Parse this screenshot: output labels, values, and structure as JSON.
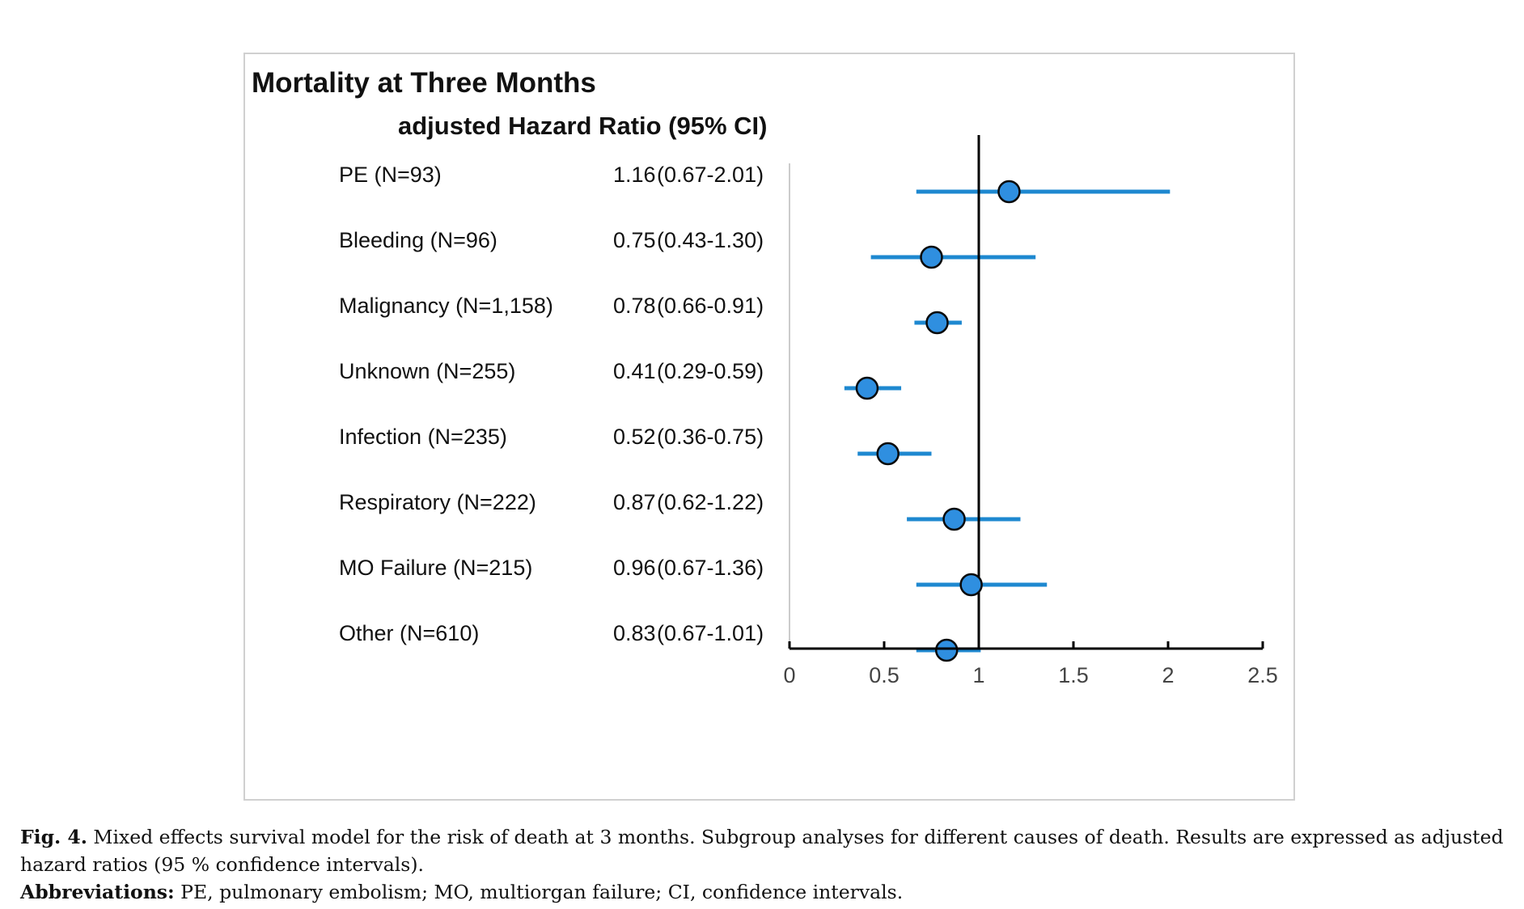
{
  "chart_data": {
    "type": "forest",
    "title": "Mortality at Three Months",
    "subtitle": "adjusted Hazard Ratio (95% CI)",
    "reference_line": 1,
    "xlim": [
      0,
      2.5
    ],
    "xticks": [
      "0",
      "0.5",
      "1",
      "1.5",
      "2",
      "2.5"
    ],
    "xtick_values": [
      0,
      0.5,
      1,
      1.5,
      2,
      2.5
    ],
    "rows": [
      {
        "label": "PE (N=93)",
        "hr_text": "1.16",
        "ci_text": "(0.67-2.01)",
        "hr": 1.16,
        "low": 0.67,
        "high": 2.01
      },
      {
        "label": "Bleeding (N=96)",
        "hr_text": "0.75",
        "ci_text": "(0.43-1.30)",
        "hr": 0.75,
        "low": 0.43,
        "high": 1.3
      },
      {
        "label": "Malignancy (N=1,158)",
        "hr_text": "0.78",
        "ci_text": "(0.66-0.91)",
        "hr": 0.78,
        "low": 0.66,
        "high": 0.91
      },
      {
        "label": "Unknown (N=255)",
        "hr_text": "0.41",
        "ci_text": "(0.29-0.59)",
        "hr": 0.41,
        "low": 0.29,
        "high": 0.59
      },
      {
        "label": "Infection  (N=235)",
        "hr_text": "0.52",
        "ci_text": "(0.36-0.75)",
        "hr": 0.52,
        "low": 0.36,
        "high": 0.75
      },
      {
        "label": "Respiratory (N=222)",
        "hr_text": "0.87",
        "ci_text": "(0.62-1.22)",
        "hr": 0.87,
        "low": 0.62,
        "high": 1.22
      },
      {
        "label": "MO Failure (N=215)",
        "hr_text": "0.96",
        "ci_text": "(0.67-1.36)",
        "hr": 0.96,
        "low": 0.67,
        "high": 1.36
      },
      {
        "label": "Other  (N=610)",
        "hr_text": "0.83",
        "ci_text": "(0.67-1.01)",
        "hr": 0.83,
        "low": 0.67,
        "high": 1.01
      }
    ],
    "colors": {
      "marker": "#2f8fe0",
      "whisker": "#1e88d0",
      "axis": "#000000"
    }
  },
  "caption": {
    "fig_label": "Fig. 4.",
    "text": " Mixed effects survival model for the risk of death at 3 months. Subgroup analyses for different causes of death. Results are expressed as adjusted hazard ratios (95 % confidence intervals).",
    "abbr_label": "Abbreviations:",
    "abbr_text": " PE, pulmonary embolism; MO, multiorgan failure; CI, confidence intervals."
  }
}
